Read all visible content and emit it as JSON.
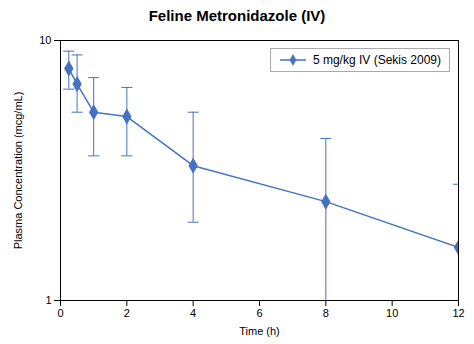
{
  "chart_data": {
    "type": "line",
    "title": "Feline Metronidazole (IV)",
    "xlabel": "Time (h)",
    "ylabel": "Plasma Concentration (mcg/mL)",
    "x": [
      0.25,
      0.5,
      1.0,
      2.0,
      4.0,
      8.0,
      12.0
    ],
    "series": [
      {
        "name": "5 mg/kg IV (Sekis 2009)",
        "color": "#4472C4",
        "values": [
          7.8,
          6.8,
          5.3,
          5.1,
          3.3,
          2.4,
          1.6
        ],
        "yerr_upper": [
          1.3,
          2.0,
          1.9,
          1.5,
          2.0,
          1.8,
          1.2
        ],
        "yerr_lower": [
          1.3,
          1.5,
          1.7,
          1.5,
          1.3,
          1.5,
          0.6
        ]
      }
    ],
    "marker": "diamond",
    "log": "y",
    "xlim": [
      0,
      12
    ],
    "xticks": [
      0,
      2,
      4,
      6,
      8,
      10,
      12
    ],
    "ylim": [
      1,
      10
    ],
    "yticks": [
      1,
      10
    ],
    "grid": false,
    "legend": "upper right"
  }
}
